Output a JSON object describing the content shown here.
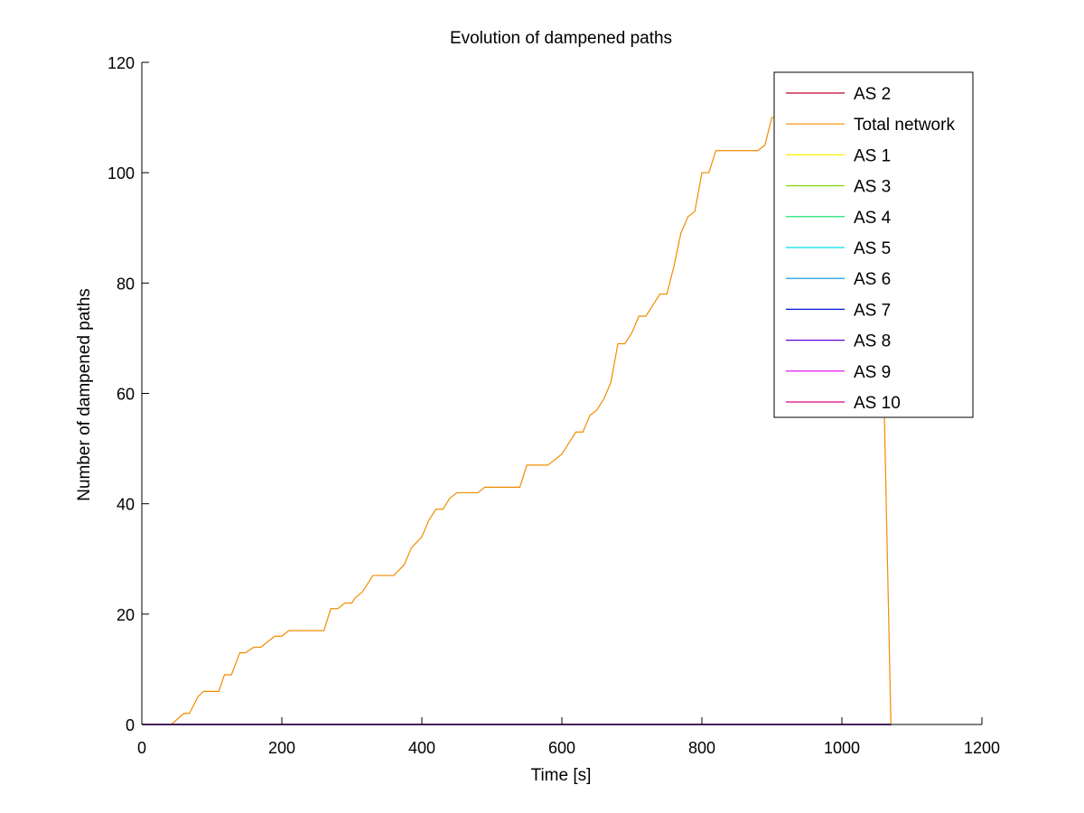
{
  "chart_data": {
    "type": "line",
    "title": "Evolution of dampened paths",
    "xlabel": "Time [s]",
    "ylabel": "Number of dampened paths",
    "xlim": [
      0,
      1200
    ],
    "ylim": [
      0,
      120
    ],
    "xticks": [
      0,
      200,
      400,
      600,
      800,
      1000,
      1200
    ],
    "yticks": [
      0,
      20,
      40,
      60,
      80,
      100,
      120
    ],
    "grid": false,
    "legend_position": "top-right",
    "series": [
      {
        "name": "AS 2",
        "color": "#c0002a",
        "x": [
          0,
          1070
        ],
        "y": [
          0,
          0
        ]
      },
      {
        "name": "Total network",
        "color": "#f28c00",
        "x": [
          0,
          42,
          60,
          68,
          80,
          88,
          110,
          118,
          128,
          140,
          148,
          160,
          170,
          190,
          200,
          210,
          260,
          270,
          280,
          290,
          300,
          305,
          315,
          330,
          350,
          360,
          375,
          385,
          400,
          410,
          420,
          430,
          440,
          450,
          460,
          480,
          490,
          540,
          550,
          580,
          600,
          610,
          620,
          630,
          640,
          650,
          660,
          670,
          680,
          690,
          700,
          710,
          720,
          730,
          740,
          750,
          760,
          770,
          780,
          790,
          800,
          810,
          820,
          880,
          890,
          900,
          1000,
          1020,
          1050,
          1060,
          1070
        ],
        "y": [
          0,
          0,
          2,
          2,
          5,
          6,
          6,
          9,
          9,
          13,
          13,
          14,
          14,
          16,
          16,
          17,
          17,
          21,
          21,
          22,
          22,
          23,
          24,
          27,
          27,
          27,
          29,
          32,
          34,
          37,
          39,
          39,
          41,
          42,
          42,
          42,
          43,
          43,
          47,
          47,
          49,
          51,
          53,
          53,
          56,
          57,
          59,
          62,
          69,
          69,
          71,
          74,
          74,
          76,
          78,
          78,
          83,
          89,
          92,
          93,
          100,
          100,
          104,
          104,
          105,
          110,
          110,
          110,
          110,
          60,
          0
        ]
      },
      {
        "name": "AS 1",
        "color": "#f5f500",
        "x": [
          0,
          1070
        ],
        "y": [
          0,
          0
        ]
      },
      {
        "name": "AS 3",
        "color": "#80e000",
        "x": [
          0,
          1070
        ],
        "y": [
          0,
          0
        ]
      },
      {
        "name": "AS 4",
        "color": "#00e060",
        "x": [
          0,
          1070
        ],
        "y": [
          0,
          0
        ]
      },
      {
        "name": "AS 5",
        "color": "#00e0e0",
        "x": [
          0,
          1070
        ],
        "y": [
          0,
          0
        ]
      },
      {
        "name": "AS 6",
        "color": "#0090e0",
        "x": [
          0,
          1070
        ],
        "y": [
          0,
          0
        ]
      },
      {
        "name": "AS 7",
        "color": "#0018d8",
        "x": [
          0,
          1070
        ],
        "y": [
          0,
          0
        ]
      },
      {
        "name": "AS 8",
        "color": "#6000d8",
        "x": [
          0,
          1070
        ],
        "y": [
          0,
          0
        ]
      },
      {
        "name": "AS 9",
        "color": "#e000f0",
        "x": [
          0,
          1070
        ],
        "y": [
          0,
          0
        ]
      },
      {
        "name": "AS 10",
        "color": "#e00080",
        "x": [
          0,
          1070
        ],
        "y": [
          0,
          0
        ]
      }
    ]
  }
}
